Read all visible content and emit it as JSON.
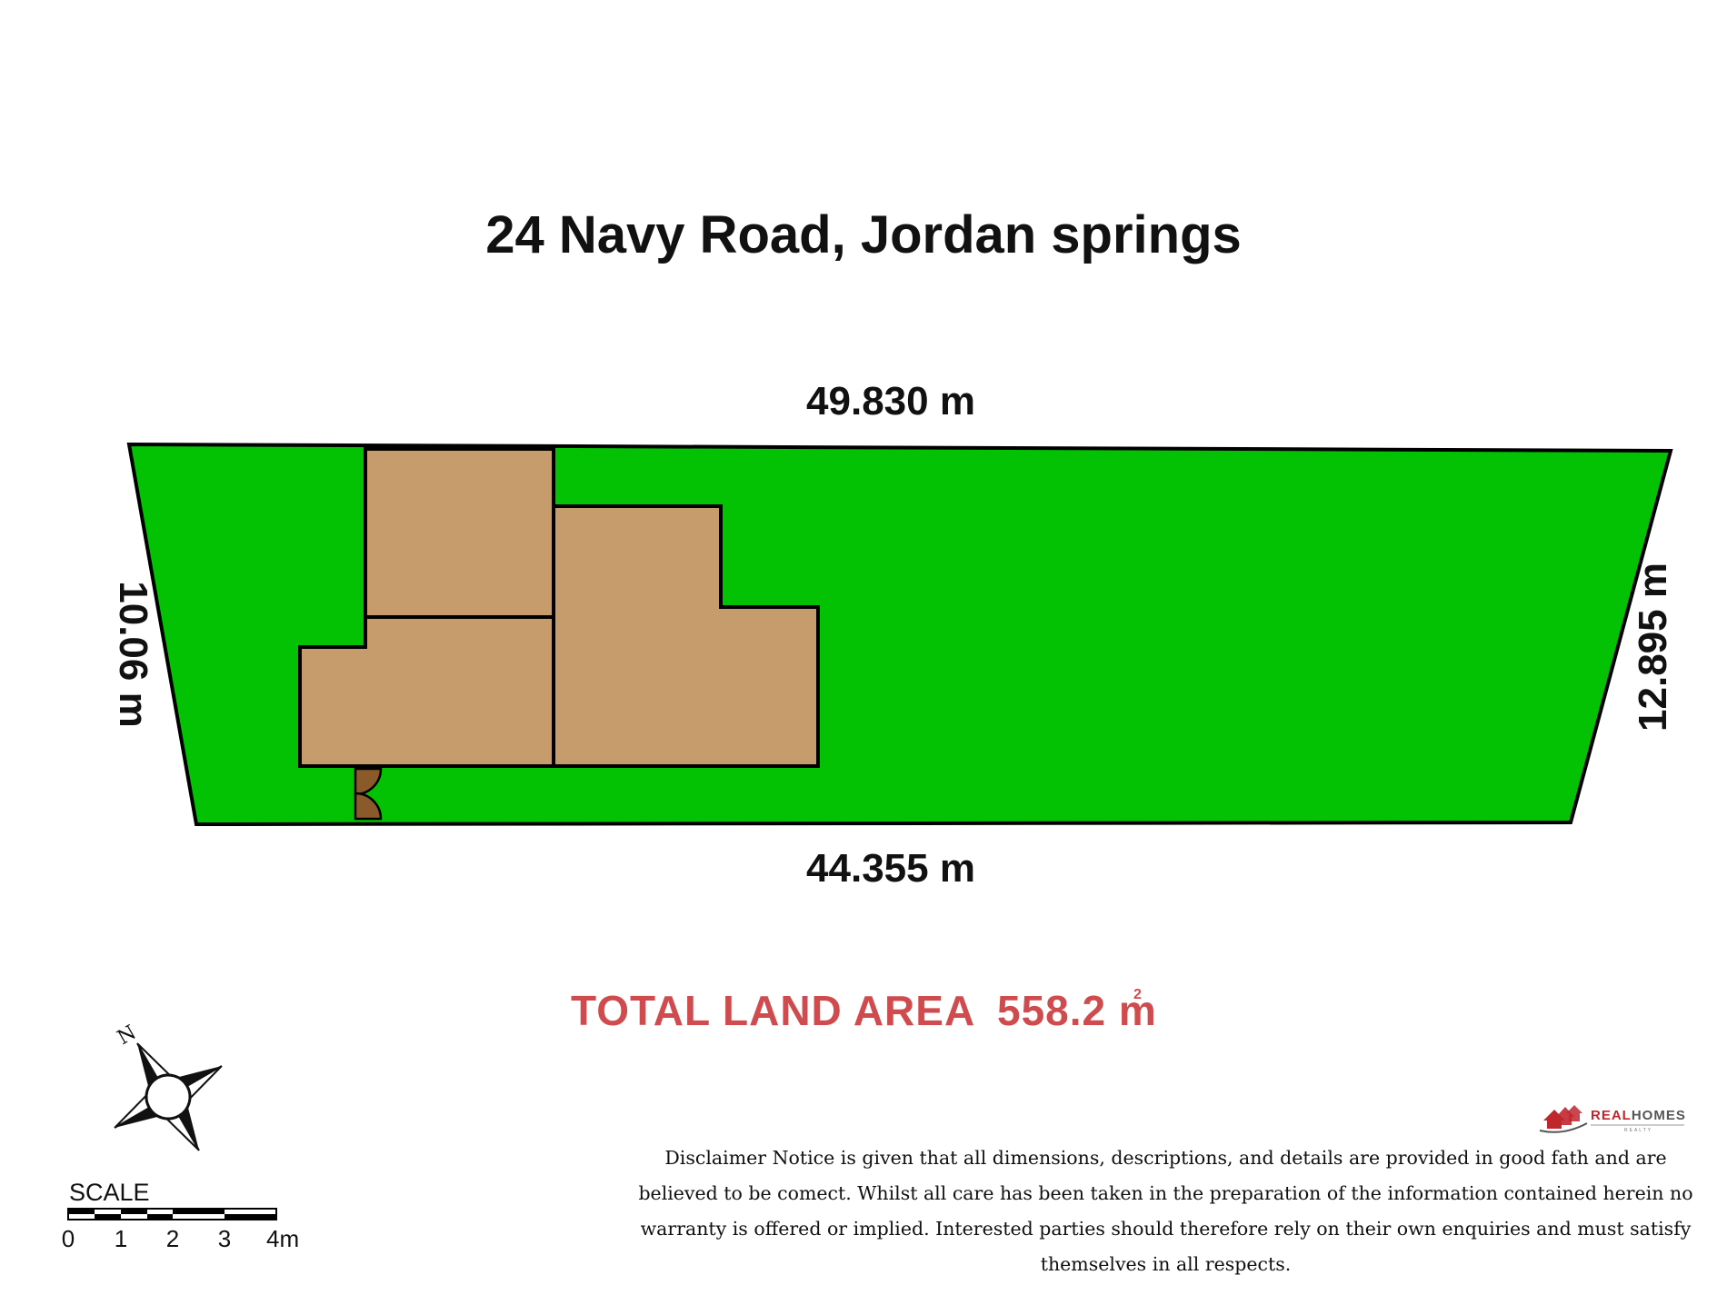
{
  "title": "24 Navy Road, Jordan springs",
  "dimensions": {
    "top": "49.830 m",
    "bottom": "44.355 m",
    "left": "10.06 m",
    "right": "12.895 m"
  },
  "total_area": {
    "label": "TOTAL LAND AREA",
    "value": "558.2 m",
    "unit_superscript": "2"
  },
  "compass": {
    "north_label": "N"
  },
  "scale": {
    "label": "SCALE",
    "ticks": [
      "0",
      "1",
      "2",
      "3",
      "4m"
    ]
  },
  "brand": {
    "name_part1": "REAL",
    "name_part2": "HOMES",
    "tagline": "REALTY"
  },
  "disclaimer": "Disclaimer Notice is given that all dimensions, descriptions, and details are provided in good fath and are believed to be comect. Whilst all care has been taken in the preparation of the information contained herein no warranty is offered or implied. Interested parties should therefore rely on their own enquiries and must satisfy themselves in all respects.",
  "colors": {
    "lot_fill": "#03c103",
    "building_fill": "#c69c6d",
    "door_fill": "#8b5a2b",
    "outline": "#000000",
    "area_text": "#cf4b4e",
    "brand_red": "#c0272d",
    "brand_gray": "#555555"
  }
}
